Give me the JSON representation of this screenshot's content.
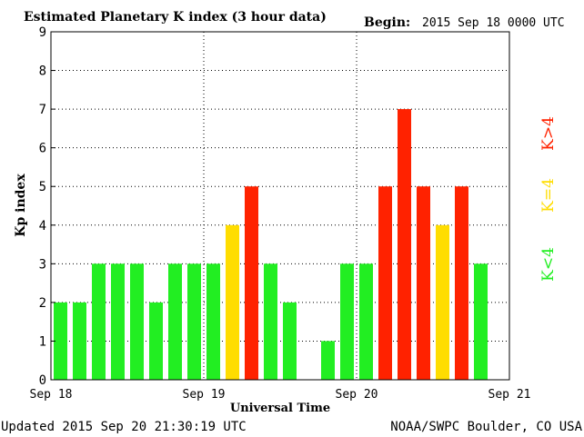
{
  "header": {
    "title": "Estimated Planetary K index (3 hour data)",
    "begin_label": "Begin:",
    "begin_value": "2015 Sep 18 0000 UTC"
  },
  "footer": {
    "updated": "Updated 2015 Sep 20 21:30:19 UTC",
    "source": "NOAA/SWPC Boulder, CO USA"
  },
  "legend": {
    "above": "K>4",
    "equal": "K=4",
    "below": "K<4"
  },
  "colors": {
    "below": "#22ee22",
    "equal": "#ffdd00",
    "above": "#ff2200"
  },
  "chart_data": {
    "type": "bar",
    "title": "Estimated Planetary K index (3 hour data)",
    "xlabel": "Universal Time",
    "ylabel": "Kp index",
    "ylim": [
      0,
      9
    ],
    "yticks": [
      "0",
      "1",
      "2",
      "3",
      "4",
      "5",
      "6",
      "7",
      "8",
      "9"
    ],
    "xticks": [
      "Sep 18",
      "Sep 19",
      "Sep 20",
      "Sep 21"
    ],
    "grid": true,
    "interval_hours": 3,
    "values": [
      2,
      2,
      3,
      3,
      3,
      2,
      3,
      3,
      3,
      4,
      5,
      3,
      2,
      0,
      1,
      3,
      3,
      5,
      7,
      5,
      4,
      5,
      3
    ]
  }
}
